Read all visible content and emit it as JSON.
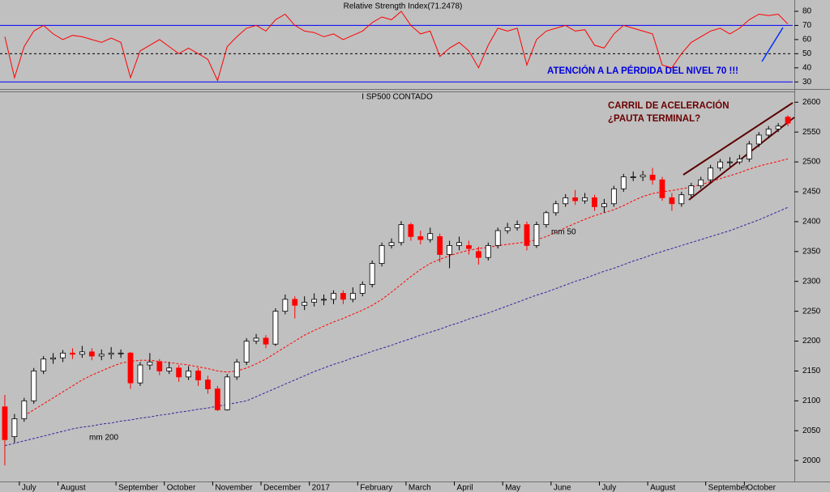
{
  "chart_data": [
    {
      "type": "line",
      "title": "Relative Strength Index(71.2478)",
      "annotation": "ATENCIÓN A LA PÉRDIDA DEL NIVEL 70 !!!",
      "color": "#ff0000",
      "ylim": [
        25,
        88
      ],
      "yticks": [
        80,
        70,
        60,
        50,
        40,
        30
      ],
      "reference_lines": [
        {
          "value": 70,
          "color": "#0000ff"
        },
        {
          "value": 50,
          "color": "#000000",
          "dash": true
        },
        {
          "value": 30,
          "color": "#0000ff"
        }
      ],
      "values": [
        62,
        33,
        55,
        66,
        70,
        64,
        60,
        63,
        62,
        60,
        58,
        61,
        58,
        33,
        52,
        56,
        60,
        55,
        50,
        54,
        50,
        46,
        31,
        55,
        62,
        68,
        70,
        66,
        74,
        78,
        70,
        66,
        65,
        62,
        64,
        60,
        63,
        66,
        72,
        76,
        74,
        80,
        70,
        64,
        66,
        48,
        54,
        58,
        52,
        40,
        56,
        68,
        66,
        68,
        42,
        60,
        66,
        68,
        70,
        66,
        67,
        56,
        54,
        64,
        70,
        68,
        66,
        64,
        42,
        40,
        50,
        58,
        62,
        66,
        68,
        64,
        68,
        74,
        78,
        77,
        78,
        71
      ]
    },
    {
      "type": "candlestick",
      "title": "I SP500 CONTADO",
      "annotations": [
        "CARRIL DE ACELERACIÓN",
        "¿PAUTA TERMINAL?"
      ],
      "up_color": "#ffffff",
      "down_color": "#ff0000",
      "ylim": [
        1965,
        2618
      ],
      "yticks": [
        2000,
        2050,
        2100,
        2150,
        2200,
        2250,
        2300,
        2350,
        2400,
        2450,
        2500,
        2550,
        2600
      ],
      "categories": [
        null,
        null,
        "July",
        null,
        null,
        null,
        "August",
        null,
        null,
        null,
        null,
        null,
        "September",
        null,
        null,
        null,
        null,
        "October",
        null,
        null,
        null,
        null,
        "November",
        null,
        null,
        null,
        null,
        "December",
        null,
        null,
        null,
        null,
        "2017",
        null,
        null,
        null,
        null,
        "February",
        null,
        null,
        null,
        null,
        "March",
        null,
        null,
        null,
        null,
        "April",
        null,
        null,
        null,
        null,
        "May",
        null,
        null,
        null,
        null,
        "June",
        null,
        null,
        null,
        null,
        "July",
        null,
        null,
        null,
        null,
        "August",
        null,
        null,
        null,
        null,
        null,
        "September",
        null,
        null,
        null,
        "October",
        null,
        null,
        null,
        null
      ],
      "open": [
        2090,
        2040,
        2070,
        2100,
        2150,
        2170,
        2172,
        2180,
        2178,
        2182,
        2175,
        2178,
        2180,
        2180,
        2130,
        2160,
        2165,
        2150,
        2155,
        2140,
        2150,
        2135,
        2120,
        2085,
        2140,
        2165,
        2200,
        2205,
        2195,
        2250,
        2270,
        2260,
        2265,
        2270,
        2270,
        2280,
        2270,
        2280,
        2295,
        2330,
        2360,
        2365,
        2395,
        2375,
        2370,
        2375,
        2345,
        2360,
        2360,
        2350,
        2340,
        2360,
        2385,
        2390,
        2395,
        2360,
        2395,
        2415,
        2430,
        2440,
        2435,
        2440,
        2425,
        2430,
        2455,
        2475,
        2475,
        2478,
        2470,
        2440,
        2430,
        2445,
        2460,
        2470,
        2490,
        2500,
        2500,
        2505,
        2530,
        2545,
        2555,
        2575
      ],
      "high": [
        2110,
        2078,
        2105,
        2155,
        2175,
        2180,
        2185,
        2188,
        2192,
        2188,
        2186,
        2190,
        2186,
        2182,
        2165,
        2180,
        2170,
        2165,
        2160,
        2158,
        2155,
        2142,
        2125,
        2145,
        2170,
        2205,
        2212,
        2210,
        2255,
        2278,
        2275,
        2275,
        2280,
        2278,
        2285,
        2285,
        2290,
        2300,
        2335,
        2365,
        2372,
        2401,
        2398,
        2385,
        2390,
        2380,
        2368,
        2375,
        2368,
        2358,
        2365,
        2390,
        2398,
        2402,
        2400,
        2400,
        2418,
        2435,
        2446,
        2453,
        2448,
        2445,
        2438,
        2460,
        2480,
        2484,
        2485,
        2490,
        2475,
        2448,
        2450,
        2465,
        2475,
        2495,
        2505,
        2508,
        2512,
        2535,
        2550,
        2560,
        2565,
        2578
      ],
      "low": [
        1992,
        2030,
        2065,
        2095,
        2145,
        2162,
        2165,
        2170,
        2172,
        2168,
        2168,
        2170,
        2172,
        2120,
        2125,
        2152,
        2143,
        2145,
        2132,
        2135,
        2125,
        2112,
        2083,
        2084,
        2135,
        2160,
        2195,
        2188,
        2192,
        2245,
        2238,
        2252,
        2258,
        2260,
        2262,
        2262,
        2265,
        2275,
        2290,
        2325,
        2355,
        2360,
        2368,
        2362,
        2365,
        2332,
        2322,
        2352,
        2345,
        2328,
        2335,
        2355,
        2380,
        2385,
        2352,
        2356,
        2390,
        2410,
        2425,
        2428,
        2430,
        2418,
        2415,
        2425,
        2450,
        2468,
        2468,
        2462,
        2435,
        2418,
        2425,
        2440,
        2455,
        2465,
        2485,
        2492,
        2496,
        2500,
        2525,
        2540,
        2550,
        2560
      ],
      "close": [
        2035,
        2070,
        2100,
        2150,
        2170,
        2172,
        2180,
        2178,
        2182,
        2175,
        2178,
        2180,
        2180,
        2130,
        2160,
        2165,
        2150,
        2155,
        2140,
        2150,
        2135,
        2120,
        2085,
        2140,
        2165,
        2200,
        2205,
        2195,
        2250,
        2270,
        2260,
        2265,
        2270,
        2270,
        2280,
        2270,
        2280,
        2295,
        2330,
        2360,
        2365,
        2395,
        2375,
        2370,
        2380,
        2345,
        2360,
        2365,
        2355,
        2340,
        2360,
        2385,
        2390,
        2395,
        2360,
        2395,
        2415,
        2430,
        2440,
        2435,
        2440,
        2425,
        2430,
        2455,
        2475,
        2475,
        2478,
        2470,
        2440,
        2430,
        2445,
        2460,
        2470,
        2490,
        2500,
        2500,
        2505,
        2530,
        2545,
        2555,
        2560,
        2565
      ],
      "series": [
        {
          "name": "mm 50",
          "color": "#ff0000",
          "values": [
            null,
            null,
            2075,
            2085,
            2095,
            2105,
            2115,
            2125,
            2135,
            2143,
            2150,
            2157,
            2163,
            2166,
            2168,
            2168,
            2166,
            2164,
            2162,
            2160,
            2157,
            2154,
            2150,
            2148,
            2150,
            2155,
            2162,
            2170,
            2180,
            2190,
            2200,
            2210,
            2218,
            2225,
            2232,
            2238,
            2245,
            2252,
            2260,
            2270,
            2282,
            2295,
            2308,
            2320,
            2330,
            2337,
            2343,
            2348,
            2352,
            2355,
            2357,
            2360,
            2362,
            2364,
            2366,
            2370,
            2375,
            2382,
            2390,
            2397,
            2404,
            2410,
            2415,
            2420,
            2427,
            2435,
            2442,
            2447,
            2450,
            2452,
            2455,
            2458,
            2462,
            2467,
            2472,
            2477,
            2482,
            2488,
            2493,
            2497,
            2501,
            2505
          ]
        },
        {
          "name": "mm 200",
          "color": "#3c1e9e",
          "values": [
            2025,
            2029,
            2033,
            2037,
            2041,
            2045,
            2049,
            2053,
            2056,
            2058,
            2061,
            2063,
            2066,
            2068,
            2071,
            2073,
            2076,
            2078,
            2081,
            2083,
            2086,
            2088,
            2091,
            2094,
            2097,
            2100,
            2107,
            2114,
            2121,
            2128,
            2135,
            2142,
            2149,
            2155,
            2161,
            2166,
            2172,
            2177,
            2183,
            2188,
            2193,
            2199,
            2204,
            2210,
            2215,
            2220,
            2226,
            2231,
            2237,
            2242,
            2247,
            2253,
            2259,
            2265,
            2271,
            2277,
            2282,
            2288,
            2294,
            2300,
            2305,
            2311,
            2317,
            2322,
            2328,
            2334,
            2339,
            2345,
            2350,
            2355,
            2360,
            2365,
            2370,
            2375,
            2380,
            2385,
            2391,
            2397,
            2403,
            2410,
            2417,
            2424
          ]
        }
      ]
    }
  ]
}
